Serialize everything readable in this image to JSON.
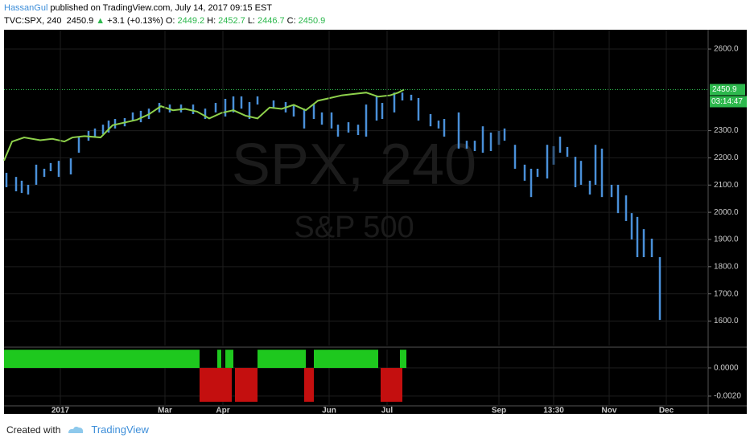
{
  "header": {
    "author": "HassanGul",
    "published": "published on TradingView.com, July 14, 2017 09:15 EST",
    "symbol": "TVC:SPX, 240",
    "last": 2450.9,
    "arrow": "▲",
    "change": "+3.1 (+0.13%)",
    "ohlc": [
      {
        "label": "O:",
        "value": 2449.2
      },
      {
        "label": "H:",
        "value": 2452.7
      },
      {
        "label": "L:",
        "value": 2446.7
      },
      {
        "label": "C:",
        "value": 2450.9
      }
    ]
  },
  "chart_data": [
    {
      "type": "range",
      "watermark": "SPX, 240",
      "watermark_sub": "S&P 500",
      "xlim": [
        0,
        875
      ],
      "ylim": [
        1510,
        2671
      ],
      "yticks": [
        {
          "value": 1600,
          "label": "1600.0"
        },
        {
          "value": 1700,
          "label": "1700.0"
        },
        {
          "value": 1800,
          "label": "1800.0"
        },
        {
          "value": 1900,
          "label": "1900.0"
        },
        {
          "value": 2000,
          "label": "2000.0"
        },
        {
          "value": 2100,
          "label": "2100.0"
        },
        {
          "value": 2200,
          "label": "2200.0"
        },
        {
          "value": 2300,
          "label": "2300.0"
        },
        {
          "value": 2600,
          "label": "2600.0"
        }
      ],
      "last_price": {
        "value": 2450.9,
        "countdown": "03:14:47",
        "color": "#2db84d"
      },
      "grid": true,
      "series": [
        {
          "color": "#4a90d9",
          "x": [
            3,
            15,
            22,
            30,
            40,
            50,
            58,
            68,
            83,
            93,
            105,
            113,
            123,
            130,
            138,
            150,
            160,
            170,
            180,
            193,
            206,
            220,
            235,
            250,
            263,
            275,
            285,
            295,
            305,
            315,
            335,
            350,
            360,
            373,
            385,
            395,
            407,
            415,
            428,
            440,
            450,
            463,
            470,
            485,
            495,
            506,
            515,
            530,
            540,
            547,
            565,
            575,
            585,
            595,
            605,
            615,
            622,
            635,
            647,
            655,
            663,
            675,
            683,
            691,
            700,
            710,
            717,
            728,
            735,
            743,
            755,
            763,
            773,
            780,
            787,
            795,
            805,
            815
          ],
          "high": [
            2145,
            2130,
            2116,
            2101,
            2175,
            2160,
            2181,
            2189,
            2198,
            2278,
            2299,
            2308,
            2322,
            2337,
            2343,
            2346,
            2367,
            2373,
            2381,
            2402,
            2396,
            2396,
            2396,
            2381,
            2402,
            2417,
            2426,
            2426,
            2405,
            2426,
            2411,
            2405,
            2396,
            2381,
            2396,
            2367,
            2367,
            2322,
            2331,
            2322,
            2396,
            2426,
            2402,
            2440,
            2440,
            2432,
            2420,
            2361,
            2337,
            2343,
            2367,
            2263,
            2263,
            2316,
            2293,
            2299,
            2308,
            2248,
            2175,
            2160,
            2160,
            2248,
            2243,
            2278,
            2240,
            2204,
            2189,
            2116,
            2248,
            2234,
            2101,
            2101,
            2062,
            1997,
            1983,
            1938,
            1903,
            1835
          ],
          "low": [
            2092,
            2077,
            2071,
            2065,
            2101,
            2130,
            2151,
            2130,
            2139,
            2219,
            2263,
            2278,
            2287,
            2293,
            2308,
            2316,
            2337,
            2331,
            2343,
            2367,
            2367,
            2367,
            2361,
            2343,
            2367,
            2352,
            2367,
            2381,
            2343,
            2396,
            2381,
            2367,
            2352,
            2308,
            2343,
            2322,
            2308,
            2278,
            2293,
            2284,
            2278,
            2337,
            2343,
            2367,
            2411,
            2411,
            2337,
            2316,
            2308,
            2278,
            2234,
            2234,
            2225,
            2219,
            2225,
            2248,
            2263,
            2160,
            2116,
            2056,
            2130,
            2124,
            2175,
            2219,
            2204,
            2092,
            2101,
            2065,
            2101,
            2056,
            2056,
            1997,
            1968,
            1900,
            1835,
            1835,
            1835,
            1604
          ]
        },
        {
          "color": "#8ed14b",
          "x": [
            0,
            10,
            25,
            45,
            60,
            75,
            85,
            100,
            120,
            135,
            150,
            165,
            180,
            195,
            210,
            225,
            240,
            255,
            270,
            285,
            300,
            315,
            330,
            345,
            360,
            375,
            390,
            405,
            420,
            435,
            450,
            465,
            480,
            490,
            497
          ],
          "values": [
            2190,
            2260,
            2275,
            2265,
            2270,
            2260,
            2275,
            2280,
            2275,
            2320,
            2330,
            2340,
            2360,
            2390,
            2375,
            2380,
            2370,
            2345,
            2365,
            2375,
            2355,
            2345,
            2385,
            2380,
            2395,
            2375,
            2410,
            2420,
            2430,
            2435,
            2440,
            2425,
            2430,
            2440,
            2450.9
          ]
        }
      ]
    },
    {
      "type": "bar",
      "xlim": [
        0,
        875
      ],
      "ylim": [
        -0.00269,
        0.00131
      ],
      "yticks": [
        {
          "value": 0,
          "label": "0.0000"
        },
        {
          "value": -0.002,
          "label": "-0.0020"
        }
      ],
      "xticks": [
        {
          "value": 70,
          "label": "2017"
        },
        {
          "value": 200,
          "label": "Mar"
        },
        {
          "value": 272,
          "label": "Apr"
        },
        {
          "value": 404,
          "label": "Jun"
        },
        {
          "value": 476,
          "label": "Jul"
        },
        {
          "value": 615,
          "label": "Sep"
        },
        {
          "value": 683,
          "label": "13:30"
        },
        {
          "value": 752,
          "label": "Nov"
        },
        {
          "value": 823,
          "label": "Dec"
        }
      ],
      "series": [
        {
          "color": "#1ec81e",
          "x0": [
            0,
            265,
            275,
            315,
            385,
            492
          ],
          "x1": [
            243,
            270,
            285,
            375,
            465,
            500
          ],
          "values": [
            0.0013,
            0.0013,
            0.0013,
            0.0013,
            0.0013,
            0.0013
          ]
        },
        {
          "color": "#c40f0f",
          "x0": [
            243,
            287,
            373,
            468
          ],
          "x1": [
            283,
            315,
            385,
            495
          ],
          "values": [
            -0.0024,
            -0.0024,
            -0.0024,
            -0.0024
          ]
        }
      ]
    }
  ],
  "footer": {
    "created": "Created with",
    "brand": "TradingView"
  }
}
